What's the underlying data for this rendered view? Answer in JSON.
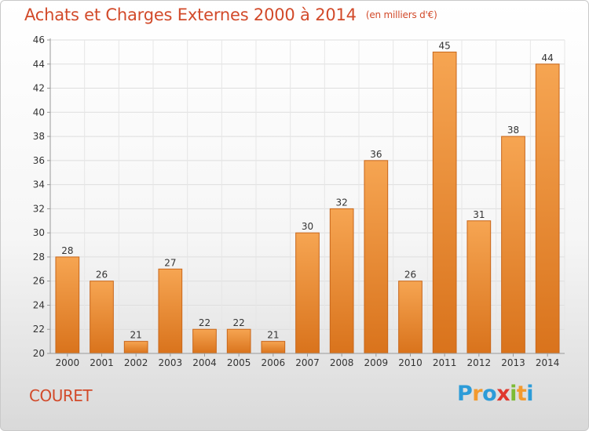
{
  "header": {
    "title": "Achats et Charges Externes 2000 à 2014",
    "subtitle": "(en milliers d'€)"
  },
  "footer": {
    "commune": "COURET",
    "logo": {
      "letters": [
        "P",
        "r",
        "o",
        "x",
        "i",
        "t",
        "i"
      ],
      "colors": [
        "#2d9cd8",
        "#f39a2e",
        "#2d9cd8",
        "#e0382e",
        "#7dbb35",
        "#f39a2e",
        "#2d9cd8"
      ]
    }
  },
  "chart_data": {
    "type": "bar",
    "title": "Achats et Charges Externes 2000 à 2014",
    "subtitle": "(en milliers d'€)",
    "xlabel": "",
    "ylabel": "",
    "categories": [
      "2000",
      "2001",
      "2002",
      "2003",
      "2004",
      "2005",
      "2006",
      "2007",
      "2008",
      "2009",
      "2010",
      "2011",
      "2012",
      "2013",
      "2014"
    ],
    "values": [
      28,
      26,
      21,
      27,
      22,
      22,
      21,
      30,
      32,
      36,
      26,
      45,
      31,
      38,
      44
    ],
    "ylim": [
      20,
      46
    ],
    "yticks": [
      "20",
      "22",
      "24",
      "26",
      "28",
      "30",
      "32",
      "34",
      "36",
      "38",
      "40",
      "42",
      "44",
      "46"
    ],
    "grid": true,
    "legend": "none",
    "bar_color_top": "#f6a552",
    "bar_color_bottom": "#d9731c",
    "bar_edge": "#c8661a"
  }
}
